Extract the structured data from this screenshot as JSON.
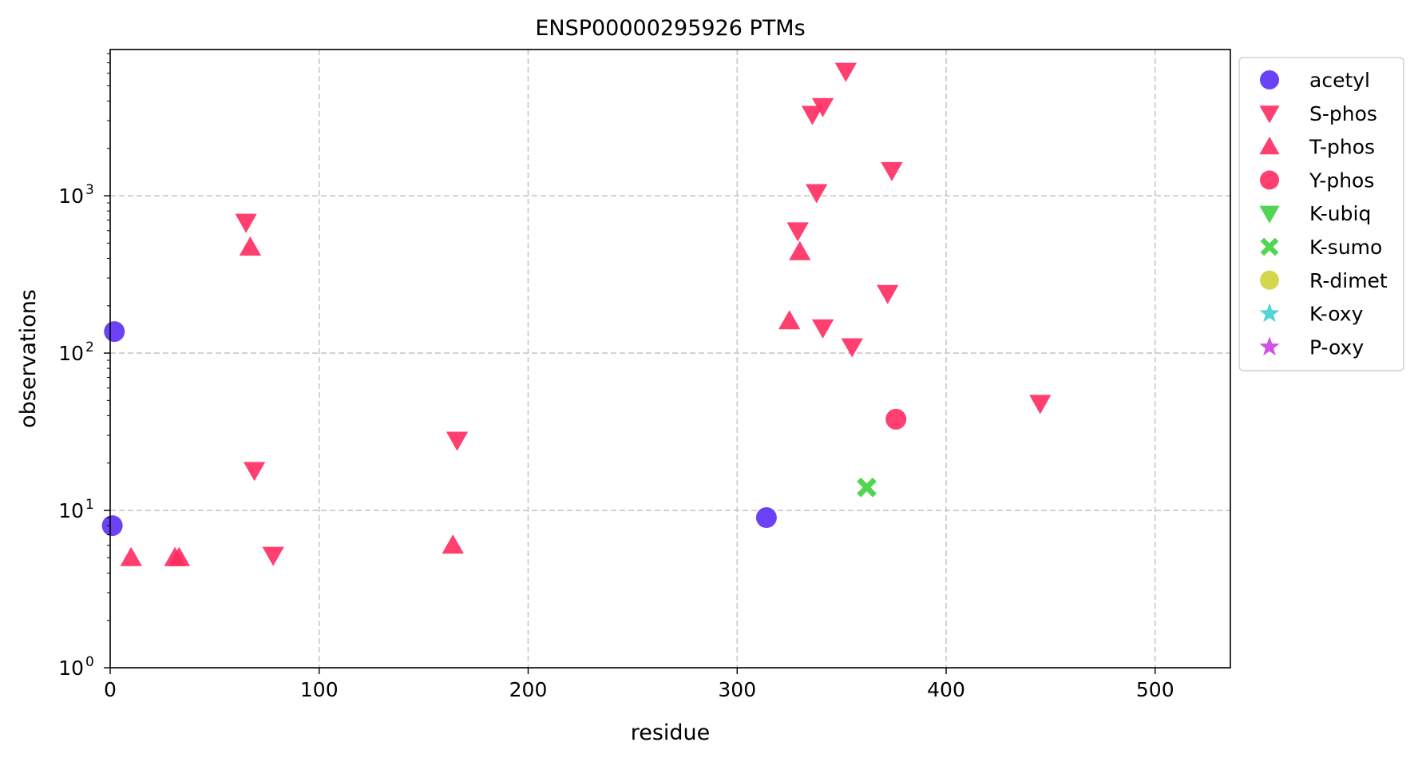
{
  "chart_data": {
    "type": "scatter",
    "title": "ENSP00000295926 PTMs",
    "xlabel": "residue",
    "ylabel": "observations",
    "xlim": [
      0,
      536
    ],
    "ylim": [
      1,
      8500
    ],
    "yscale": "log",
    "x_ticks": [
      0,
      100,
      200,
      300,
      400,
      500
    ],
    "x_tick_labels": [
      "0",
      "100",
      "200",
      "300",
      "400",
      "500"
    ],
    "y_ticks": [
      1,
      10,
      100,
      1000
    ],
    "y_tick_labels": [
      {
        "base": "10",
        "exp": "0"
      },
      {
        "base": "10",
        "exp": "1"
      },
      {
        "base": "10",
        "exp": "2"
      },
      {
        "base": "10",
        "exp": "3"
      }
    ],
    "grid": true,
    "legend_position": "outside-right-top",
    "series": [
      {
        "name": "acetyl",
        "marker": "circle",
        "color": "#5b2ef5",
        "points": [
          [
            2,
            137
          ],
          [
            1,
            8
          ],
          [
            314,
            9
          ]
        ]
      },
      {
        "name": "S-phos",
        "marker": "triangle-down",
        "color": "#ff2a5f",
        "points": [
          [
            352,
            6200
          ],
          [
            341,
            3700
          ],
          [
            336,
            3300
          ],
          [
            374,
            1450
          ],
          [
            338,
            1050
          ],
          [
            65,
            680
          ],
          [
            329,
            600
          ],
          [
            372,
            240
          ],
          [
            341,
            145
          ],
          [
            355,
            110
          ],
          [
            445,
            48
          ],
          [
            166,
            28
          ],
          [
            69,
            18
          ],
          [
            78,
            5.2
          ]
        ]
      },
      {
        "name": "T-phos",
        "marker": "triangle-up",
        "color": "#ff2a5f",
        "points": [
          [
            67,
            470
          ],
          [
            330,
            440
          ],
          [
            325,
            160
          ],
          [
            10,
            5
          ],
          [
            31,
            5
          ],
          [
            33,
            5
          ],
          [
            164,
            6
          ]
        ]
      },
      {
        "name": "Y-phos",
        "marker": "circle",
        "color": "#ff2a5f",
        "points": [
          [
            376,
            38
          ]
        ]
      },
      {
        "name": "K-ubiq",
        "marker": "triangle-down",
        "color": "#3fd13f",
        "points": []
      },
      {
        "name": "K-sumo",
        "marker": "x",
        "color": "#3fd13f",
        "points": [
          [
            362,
            14
          ]
        ]
      },
      {
        "name": "R-dimet",
        "marker": "circle",
        "color": "#cfd23a",
        "points": []
      },
      {
        "name": "K-oxy",
        "marker": "star",
        "color": "#3fd0d0",
        "points": []
      },
      {
        "name": "P-oxy",
        "marker": "star",
        "color": "#cf3fe0",
        "points": []
      }
    ]
  }
}
